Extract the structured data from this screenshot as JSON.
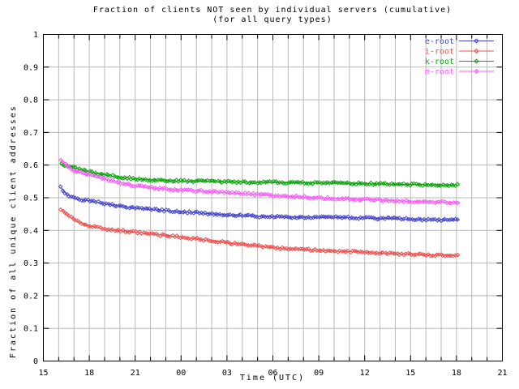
{
  "title": {
    "line1": "Fraction of clients NOT seen by individual servers (cumulative)",
    "line2": "(for all query types)"
  },
  "colors": {
    "background": "#ffffff",
    "border": "#000000",
    "grid": "#b9b9b9",
    "text": "#000000"
  },
  "chart_data": {
    "type": "line",
    "title": "Fraction of clients NOT seen by individual servers (cumulative)",
    "subtitle": "(for all query types)",
    "xlabel": "Time (UTC)",
    "ylabel": "Fraction of all unique client addresses",
    "xlim": [
      15,
      45
    ],
    "ylim": [
      0,
      1
    ],
    "x_unit": "hours UTC, continuing past midnight (27 = 03:00 next day)",
    "x_tick_positions": [
      15,
      18,
      21,
      24,
      27,
      30,
      33,
      36,
      39,
      42,
      45
    ],
    "x_tick_labels": [
      "15",
      "18",
      "21",
      "00",
      "03",
      "06",
      "09",
      "12",
      "15",
      "18",
      "21"
    ],
    "x_minor_step": 1,
    "y_tick_positions": [
      0,
      0.1,
      0.2,
      0.3,
      0.4,
      0.5,
      0.6,
      0.7,
      0.8,
      0.9,
      1
    ],
    "y_tick_labels": [
      "0",
      "0.1",
      "0.2",
      "0.3",
      "0.4",
      "0.5",
      "0.6",
      "0.7",
      "0.8",
      "0.9",
      "1"
    ],
    "grid": true,
    "marker": "diamond",
    "legend_position": "top-right-inside",
    "x": [
      16.15,
      16.5,
      17,
      17.5,
      18,
      19,
      20,
      21,
      22,
      23,
      24,
      25,
      26,
      27,
      28,
      29,
      30,
      31,
      32,
      33,
      34,
      35,
      36,
      37,
      38,
      39,
      40,
      41,
      42,
      42.2
    ],
    "series": [
      {
        "name": "e-root",
        "color": "#4747d1",
        "values": [
          0.531,
          0.511,
          0.498,
          0.494,
          0.491,
          0.482,
          0.475,
          0.468,
          0.464,
          0.461,
          0.457,
          0.454,
          0.451,
          0.448,
          0.445,
          0.443,
          0.441,
          0.441,
          0.441,
          0.44,
          0.44,
          0.439,
          0.438,
          0.437,
          0.436,
          0.434,
          0.433,
          0.432,
          0.432,
          0.432
        ]
      },
      {
        "name": "i-root",
        "color": "#ef5353",
        "values": [
          0.467,
          0.449,
          0.433,
          0.422,
          0.414,
          0.404,
          0.399,
          0.395,
          0.389,
          0.384,
          0.38,
          0.374,
          0.368,
          0.362,
          0.357,
          0.352,
          0.347,
          0.344,
          0.342,
          0.339,
          0.337,
          0.335,
          0.333,
          0.33,
          0.328,
          0.327,
          0.325,
          0.324,
          0.323,
          0.323
        ]
      },
      {
        "name": "k-root",
        "color": "#0fa50f",
        "values": [
          0.604,
          0.598,
          0.592,
          0.585,
          0.579,
          0.57,
          0.563,
          0.558,
          0.555,
          0.553,
          0.551,
          0.551,
          0.55,
          0.549,
          0.548,
          0.547,
          0.547,
          0.546,
          0.546,
          0.545,
          0.545,
          0.544,
          0.543,
          0.542,
          0.541,
          0.541,
          0.54,
          0.539,
          0.539,
          0.539
        ]
      },
      {
        "name": "m-root",
        "color": "#fa5ffa",
        "values": [
          0.617,
          0.6,
          0.582,
          0.575,
          0.569,
          0.558,
          0.547,
          0.536,
          0.531,
          0.527,
          0.523,
          0.521,
          0.518,
          0.516,
          0.513,
          0.51,
          0.507,
          0.504,
          0.502,
          0.5,
          0.498,
          0.497,
          0.495,
          0.493,
          0.491,
          0.489,
          0.488,
          0.487,
          0.486,
          0.486
        ]
      }
    ]
  }
}
